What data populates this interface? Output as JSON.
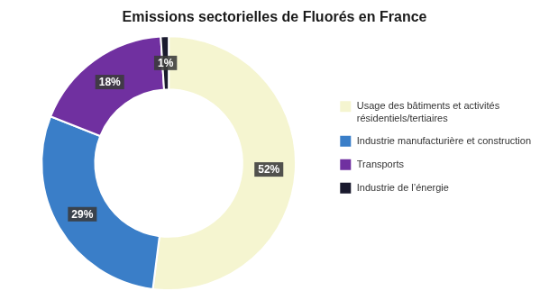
{
  "chart_data": {
    "type": "doughnut",
    "title": "Emissions sectorielles de Fluorés en France",
    "categories": [
      "Usage des bâtiments et activités\nrésidentiels/tertiaires",
      "Industrie manufacturière et construction",
      "Transports",
      "Industrie de l’énergie"
    ],
    "values": [
      52,
      29,
      18,
      1
    ],
    "value_labels": [
      "52%",
      "29%",
      "18%",
      "1%"
    ],
    "colors": [
      "#f5f5d0",
      "#3a7ec8",
      "#7030a0",
      "#1a1a2e"
    ],
    "data_labels": true,
    "legend": "right"
  }
}
